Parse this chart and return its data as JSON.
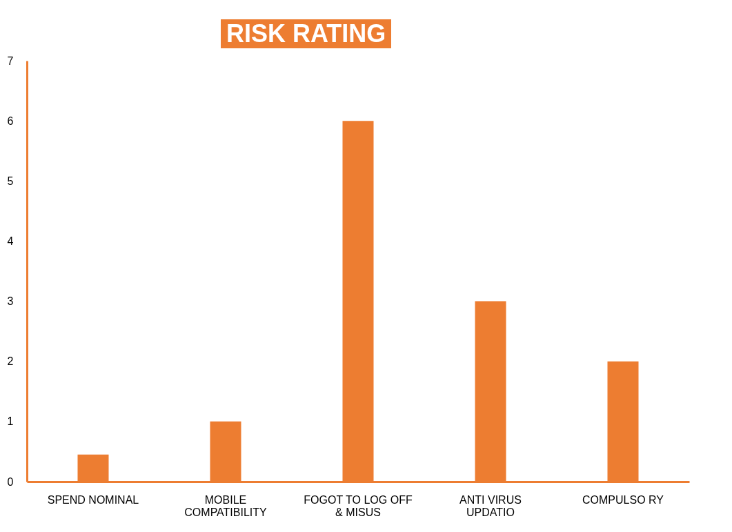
{
  "chart_data": {
    "type": "bar",
    "title": "RISK RATING",
    "categories": [
      "SPEND NOMINAL",
      "MOBILE COMPATIBILITY",
      "FOGOT TO LOG OFF & MISUS",
      "ANTI VIRUS UPDATIO",
      "COMPULSO RY"
    ],
    "values": [
      0.45,
      1,
      6,
      3,
      2
    ],
    "color": "#ed7d31",
    "ylim": [
      0,
      7
    ],
    "yticks": [
      0,
      1,
      2,
      3,
      4,
      5,
      6,
      7
    ],
    "grid": false
  }
}
